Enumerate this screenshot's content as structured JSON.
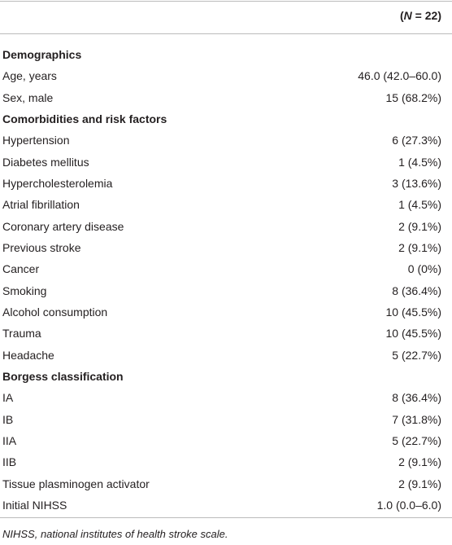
{
  "header": {
    "open": "(",
    "n": "N",
    "rest": " = 22)"
  },
  "sections": [
    {
      "title": "Demographics",
      "rows": [
        [
          "Age, years",
          "46.0 (42.0–60.0)"
        ],
        [
          "Sex, male",
          "15 (68.2%)"
        ]
      ]
    },
    {
      "title": "Comorbidities and risk factors",
      "rows": [
        [
          "Hypertension",
          "6 (27.3%)"
        ],
        [
          "Diabetes mellitus",
          "1 (4.5%)"
        ],
        [
          "Hypercholesterolemia",
          "3 (13.6%)"
        ],
        [
          "Atrial fibrillation",
          "1 (4.5%)"
        ],
        [
          "Coronary artery disease",
          "2 (9.1%)"
        ],
        [
          "Previous stroke",
          "2 (9.1%)"
        ],
        [
          "Cancer",
          "0 (0%)"
        ],
        [
          "Smoking",
          "8 (36.4%)"
        ],
        [
          "Alcohol consumption",
          "10 (45.5%)"
        ],
        [
          "Trauma",
          "10 (45.5%)"
        ],
        [
          "Headache",
          "5 (22.7%)"
        ]
      ]
    },
    {
      "title": "Borgess classification",
      "rows": [
        [
          "IA",
          "8 (36.4%)"
        ],
        [
          "IB",
          "7 (31.8%)"
        ],
        [
          "IIA",
          "5 (22.7%)"
        ],
        [
          "IIB",
          "2 (9.1%)"
        ],
        [
          "Tissue plasminogen activator",
          "2 (9.1%)"
        ],
        [
          "Initial NIHSS",
          "1.0 (0.0–6.0)"
        ]
      ]
    }
  ],
  "footnote": "NIHSS, national institutes of health stroke scale."
}
